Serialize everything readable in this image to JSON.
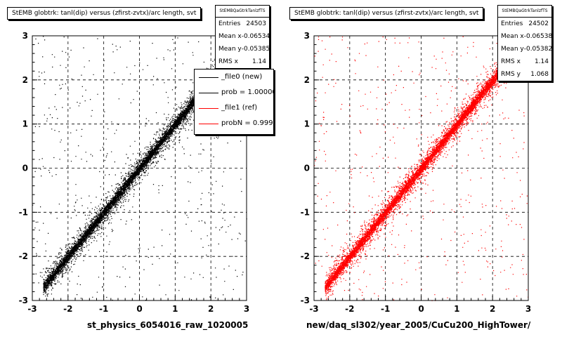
{
  "chart_data": [
    {
      "type": "scatter",
      "title": "StEMB globtrk: tanl(dip) versus (zfirst-zvtx)/arc length, svt",
      "xlabel": "st_physics_6054016_raw_1020005",
      "ylabel": "",
      "xlim": [
        -3,
        3
      ],
      "ylim": [
        -3,
        3
      ],
      "xticks": [
        "-3",
        "-2",
        "-1",
        "0",
        "1",
        "2",
        "3"
      ],
      "yticks": [
        "-3",
        "-2",
        "-1",
        "0",
        "1",
        "2",
        "3"
      ],
      "grid": true,
      "color": "#000000",
      "trend": {
        "x": [
          -2.7,
          2.7
        ],
        "y": [
          -2.7,
          2.7
        ]
      },
      "stats": {
        "name": "StEMBQaGtrkTanlzfTS",
        "rows": [
          {
            "label": "Entries",
            "value": "24503"
          },
          {
            "label": "Mean x",
            "value": "-0.06534"
          },
          {
            "label": "Mean y",
            "value": "-0.05385"
          },
          {
            "label": "RMS x",
            "value": "1.14"
          }
        ]
      },
      "legend": {
        "placement": "top-right",
        "entries": [
          {
            "label": "_file0 (new)",
            "color": "#000000"
          },
          {
            "label": "prob = 1.000000",
            "color": "#000000"
          },
          {
            "label": "_file1 (ref)",
            "color": "#ff0000"
          },
          {
            "label": "probN = 0.999999",
            "color": "#ff0000"
          }
        ]
      }
    },
    {
      "type": "scatter",
      "title": "StEMB globtrk: tanl(dip) versus (zfirst-zvtx)/arc length, svt",
      "xlabel": "new/daq_sl302/year_2005/CuCu200_HighTower/",
      "ylabel": "",
      "xlim": [
        -3,
        3
      ],
      "ylim": [
        -3,
        3
      ],
      "xticks": [
        "-3",
        "-2",
        "-1",
        "0",
        "1",
        "2",
        "3"
      ],
      "yticks": [
        "-3",
        "-2",
        "-1",
        "0",
        "1",
        "2",
        "3"
      ],
      "grid": true,
      "color": "#ff0000",
      "trend": {
        "x": [
          -2.7,
          2.7
        ],
        "y": [
          -2.7,
          2.7
        ]
      },
      "stats": {
        "name": "StEMBQaGtrkTanlzfTS",
        "rows": [
          {
            "label": "Entries",
            "value": "24502"
          },
          {
            "label": "Mean x",
            "value": "-0.06538"
          },
          {
            "label": "Mean y",
            "value": "-0.05382"
          },
          {
            "label": "RMS x",
            "value": "1.14"
          },
          {
            "label": "RMS y",
            "value": "1.068"
          }
        ]
      }
    }
  ]
}
